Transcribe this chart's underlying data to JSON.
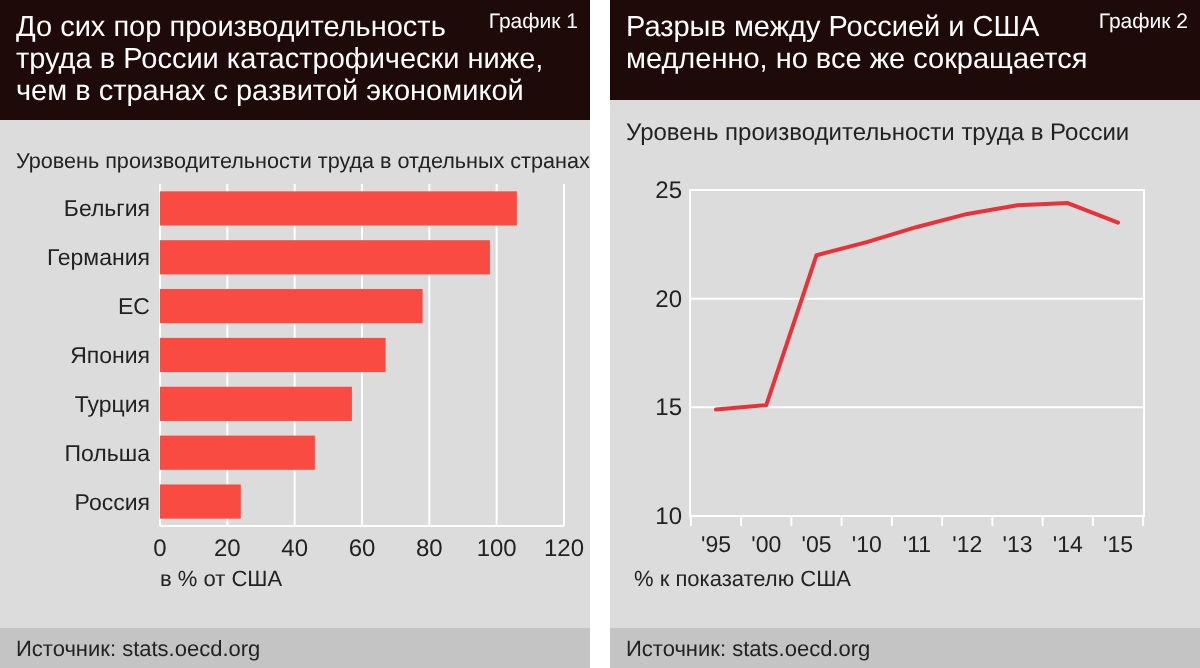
{
  "chart_data": [
    {
      "type": "bar",
      "orientation": "horizontal",
      "title": "До сих пор производительность\nтруда в России катастрофически ниже,\nчем в странах с развитой экономикой",
      "subtitle": "Уровень производительности труда в отдельных странах",
      "xlabel": "в % от США",
      "categories": [
        "Бельгия",
        "Германия",
        "ЕС",
        "Япония",
        "Турция",
        "Польша",
        "Россия"
      ],
      "values": [
        106,
        98,
        78,
        67,
        57,
        46,
        24
      ],
      "color": "#fa4b43",
      "xlim": [
        0,
        120
      ],
      "xticks": [
        0,
        20,
        40,
        60,
        80,
        100,
        120
      ],
      "grid": "x",
      "annotations": [
        "График 1",
        "Источник: stats.oecd.org"
      ]
    },
    {
      "type": "line",
      "title": "Разрыв между Россией и США\nмедленно, но все же сокращается",
      "subtitle": "Уровень производительности труда в России",
      "xlabel": "% к показателю США",
      "categories": [
        "'95",
        "'00",
        "'05",
        "'10",
        "'11",
        "'12",
        "'13",
        "'14",
        "'15"
      ],
      "values": [
        14.9,
        15.1,
        22.0,
        22.6,
        23.3,
        23.9,
        24.3,
        24.4,
        23.5
      ],
      "color": "#e8323a",
      "ylim": [
        10,
        25
      ],
      "yticks": [
        10,
        15,
        20,
        25
      ],
      "grid": "y",
      "marker": "none",
      "annotations": [
        "График 2",
        "Источник: stats.oecd.org"
      ]
    }
  ]
}
